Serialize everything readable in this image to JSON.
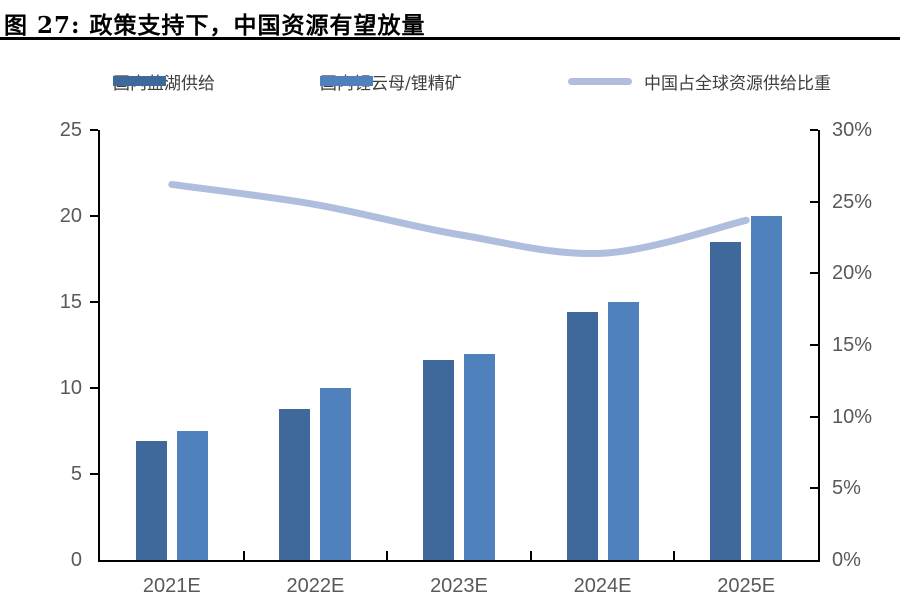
{
  "title": "图 27:  政策支持下，中国资源有望放量",
  "legend": {
    "items": [
      {
        "label": "国内盐湖供给",
        "type": "bar",
        "color": "#3F699B"
      },
      {
        "label": "国内锂云母/锂精矿",
        "type": "bar",
        "color": "#4F81BD"
      },
      {
        "label": "中国占全球资源供给比重",
        "type": "line",
        "color": "#AEBEDC"
      }
    ]
  },
  "chart_data": {
    "type": "bar",
    "categories": [
      "2021E",
      "2022E",
      "2023E",
      "2024E",
      "2025E"
    ],
    "series": [
      {
        "name": "国内盐湖供给",
        "type": "bar",
        "axis": "left",
        "color": "#3F699B",
        "values": [
          6.9,
          8.8,
          11.6,
          14.4,
          18.5
        ]
      },
      {
        "name": "国内锂云母/锂精矿",
        "type": "bar",
        "axis": "left",
        "color": "#4F81BD",
        "values": [
          7.5,
          10.0,
          12.0,
          15.0,
          20.0
        ]
      },
      {
        "name": "中国占全球资源供给比重",
        "type": "line",
        "axis": "right",
        "color": "#AEBEDC",
        "unit": "%",
        "values": [
          26.2,
          24.8,
          22.7,
          21.4,
          23.7
        ]
      }
    ],
    "title": "政策支持下，中国资源有望放量",
    "xlabel": "",
    "ylabel": "",
    "left_axis": {
      "min": 0,
      "max": 25,
      "step": 5,
      "tick_labels": [
        "0",
        "5",
        "10",
        "15",
        "20",
        "25"
      ]
    },
    "right_axis": {
      "min": 0,
      "max": 30,
      "step": 5,
      "tick_labels": [
        "0%",
        "5%",
        "10%",
        "15%",
        "20%",
        "25%",
        "30%"
      ]
    },
    "legend_position": "top",
    "grid": false
  },
  "colors": {
    "bar_dark": "#3F699B",
    "bar_light": "#4F81BD",
    "line": "#AEBEDC",
    "axis_line": "#000000",
    "axis_text": "#595959",
    "title_text": "#000000"
  }
}
